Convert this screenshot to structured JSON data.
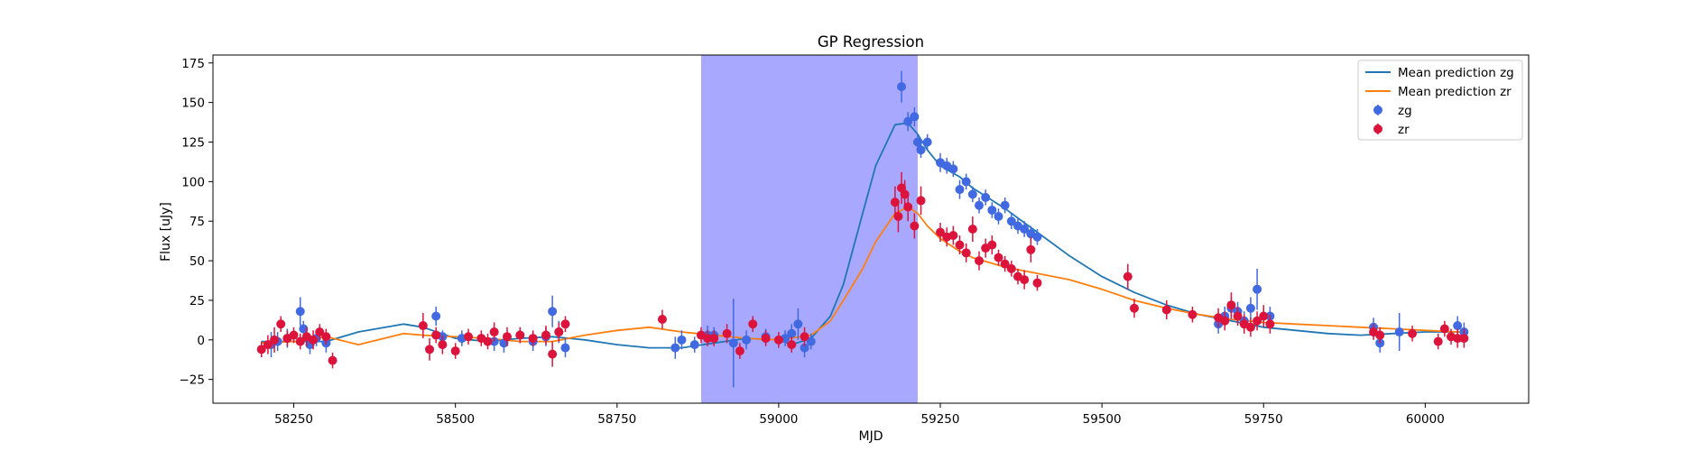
{
  "chart_data": {
    "type": "scatter",
    "title": "GP Regression",
    "xlabel": "MJD",
    "ylabel": "Flux [uJy]",
    "xlim": [
      58125,
      60160
    ],
    "ylim": [
      -40,
      180
    ],
    "xticks": [
      58250,
      58500,
      58750,
      59000,
      59250,
      59500,
      59750,
      60000
    ],
    "yticks": [
      -25,
      0,
      25,
      50,
      75,
      100,
      125,
      150,
      175
    ],
    "grid": false,
    "legend_position": "top-right",
    "shaded_region": {
      "x0": 58880,
      "x1": 59215,
      "color": "#a8a8ff"
    },
    "colors": {
      "zg_line": "#1f77b4",
      "zr_line": "#ff7f0e",
      "zg_points": "#4169e1",
      "zr_points": "#dc143c"
    },
    "lines": [
      {
        "name": "Mean prediction zg",
        "color": "#1f77b4",
        "x": [
          58200,
          58250,
          58300,
          58350,
          58420,
          58450,
          58500,
          58550,
          58600,
          58650,
          58700,
          58750,
          58800,
          58850,
          58900,
          58950,
          59000,
          59020,
          59050,
          59080,
          59100,
          59130,
          59150,
          59180,
          59200,
          59215,
          59230,
          59250,
          59280,
          59300,
          59350,
          59400,
          59450,
          59500,
          59550,
          59600,
          59650,
          59700,
          59750,
          59800,
          59850,
          59900,
          59950,
          60000,
          60050,
          60060
        ],
        "y": [
          -1,
          -1,
          -1,
          5,
          10,
          8,
          1,
          -1,
          1,
          2,
          0,
          -3,
          -5,
          -5,
          -2,
          1,
          0,
          -3,
          1,
          15,
          35,
          80,
          110,
          136,
          137,
          130,
          120,
          110,
          103,
          96,
          83,
          68,
          53,
          40,
          30,
          22,
          16,
          12,
          8,
          6,
          4,
          3,
          4,
          5,
          5,
          5
        ]
      },
      {
        "name": "Mean prediction zr",
        "color": "#ff7f0e",
        "x": [
          58200,
          58250,
          58300,
          58350,
          58420,
          58450,
          58500,
          58550,
          58600,
          58650,
          58700,
          58750,
          58800,
          58850,
          58900,
          58950,
          59000,
          59050,
          59080,
          59100,
          59130,
          59150,
          59180,
          59200,
          59215,
          59230,
          59250,
          59280,
          59300,
          59350,
          59400,
          59450,
          59500,
          59550,
          59600,
          59650,
          59700,
          59750,
          59800,
          59850,
          59900,
          59950,
          60000,
          60050,
          60060
        ],
        "y": [
          -2,
          -1,
          2,
          -3,
          4,
          3,
          2,
          1,
          -1,
          -1,
          3,
          6,
          8,
          5,
          3,
          1,
          0,
          3,
          12,
          25,
          45,
          62,
          80,
          84,
          80,
          72,
          64,
          56,
          52,
          46,
          42,
          38,
          32,
          25,
          20,
          16,
          13,
          11,
          10,
          9,
          8,
          7,
          6,
          5,
          5
        ]
      }
    ],
    "series": [
      {
        "name": "zg",
        "color": "#4169e1",
        "x": [
          58215,
          58225,
          58240,
          58260,
          58265,
          58275,
          58285,
          58300,
          58470,
          58480,
          58510,
          58560,
          58575,
          58600,
          58620,
          58640,
          58650,
          58660,
          58670,
          58840,
          58850,
          58870,
          58890,
          58900,
          58930,
          58950,
          58980,
          59010,
          59020,
          59030,
          59040,
          59050,
          59190,
          59200,
          59210,
          59215,
          59220,
          59230,
          59250,
          59260,
          59270,
          59280,
          59290,
          59300,
          59310,
          59320,
          59330,
          59340,
          59350,
          59360,
          59370,
          59380,
          59390,
          59400,
          59680,
          59690,
          59700,
          59710,
          59720,
          59730,
          59740,
          59760,
          59920,
          59930,
          59960,
          60050,
          60060
        ],
        "y": [
          -3,
          -1,
          1,
          18,
          7,
          -3,
          1,
          -2,
          15,
          2,
          1,
          -1,
          -2,
          3,
          -1,
          2,
          18,
          5,
          -5,
          -5,
          0,
          -3,
          3,
          3,
          -2,
          0,
          2,
          1,
          4,
          10,
          -5,
          -1,
          160,
          138,
          141,
          125,
          120,
          125,
          112,
          110,
          108,
          95,
          100,
          92,
          85,
          90,
          82,
          78,
          85,
          75,
          72,
          70,
          67,
          65,
          10,
          15,
          20,
          18,
          12,
          20,
          32,
          15,
          8,
          -2,
          5,
          9,
          5
        ],
        "err": [
          8,
          6,
          6,
          9,
          5,
          6,
          5,
          6,
          6,
          4,
          5,
          6,
          6,
          5,
          6,
          6,
          10,
          7,
          6,
          7,
          6,
          5,
          6,
          5,
          28,
          6,
          5,
          5,
          6,
          10,
          6,
          5,
          10,
          6,
          6,
          5,
          5,
          5,
          6,
          5,
          5,
          6,
          5,
          5,
          5,
          5,
          5,
          5,
          5,
          5,
          5,
          5,
          5,
          5,
          6,
          6,
          7,
          6,
          6,
          7,
          13,
          6,
          6,
          6,
          12,
          6,
          6
        ]
      },
      {
        "name": "zr",
        "color": "#dc143c",
        "x": [
          58200,
          58210,
          58220,
          58230,
          58240,
          58250,
          58260,
          58270,
          58280,
          58290,
          58300,
          58310,
          58450,
          58460,
          58470,
          58480,
          58500,
          58520,
          58540,
          58550,
          58560,
          58580,
          58600,
          58620,
          58640,
          58650,
          58660,
          58670,
          58820,
          58880,
          58890,
          58900,
          58920,
          58940,
          58960,
          58980,
          59000,
          59020,
          59040,
          59180,
          59185,
          59190,
          59195,
          59200,
          59210,
          59220,
          59250,
          59260,
          59270,
          59280,
          59290,
          59300,
          59310,
          59320,
          59330,
          59340,
          59350,
          59360,
          59370,
          59380,
          59390,
          59400,
          59540,
          59550,
          59600,
          59640,
          59680,
          59690,
          59700,
          59710,
          59720,
          59730,
          59740,
          59750,
          59760,
          59920,
          59930,
          59980,
          60020,
          60030,
          60040,
          60050,
          60060
        ],
        "y": [
          -6,
          -3,
          0,
          10,
          1,
          3,
          -1,
          2,
          0,
          5,
          2,
          -13,
          9,
          -6,
          3,
          -3,
          -7,
          2,
          1,
          -1,
          5,
          2,
          3,
          1,
          3,
          -9,
          5,
          10,
          13,
          3,
          1,
          1,
          4,
          -7,
          10,
          1,
          0,
          -3,
          2,
          87,
          78,
          96,
          92,
          84,
          72,
          88,
          68,
          65,
          66,
          60,
          55,
          70,
          50,
          58,
          60,
          52,
          48,
          45,
          40,
          38,
          57,
          36,
          40,
          20,
          19,
          16,
          14,
          12,
          22,
          15,
          10,
          8,
          12,
          15,
          10,
          5,
          3,
          4,
          -1,
          7,
          2,
          1,
          1
        ],
        "err": [
          5,
          6,
          8,
          5,
          5,
          5,
          5,
          6,
          6,
          5,
          5,
          5,
          8,
          7,
          5,
          6,
          5,
          5,
          5,
          5,
          6,
          6,
          5,
          5,
          6,
          8,
          6,
          5,
          6,
          5,
          5,
          5,
          6,
          5,
          5,
          5,
          5,
          5,
          6,
          10,
          10,
          10,
          9,
          9,
          8,
          9,
          6,
          6,
          6,
          6,
          6,
          8,
          6,
          6,
          6,
          5,
          5,
          5,
          5,
          6,
          8,
          5,
          8,
          6,
          6,
          5,
          6,
          6,
          8,
          6,
          6,
          6,
          6,
          7,
          6,
          5,
          5,
          5,
          5,
          5,
          5,
          6,
          6
        ]
      }
    ]
  }
}
